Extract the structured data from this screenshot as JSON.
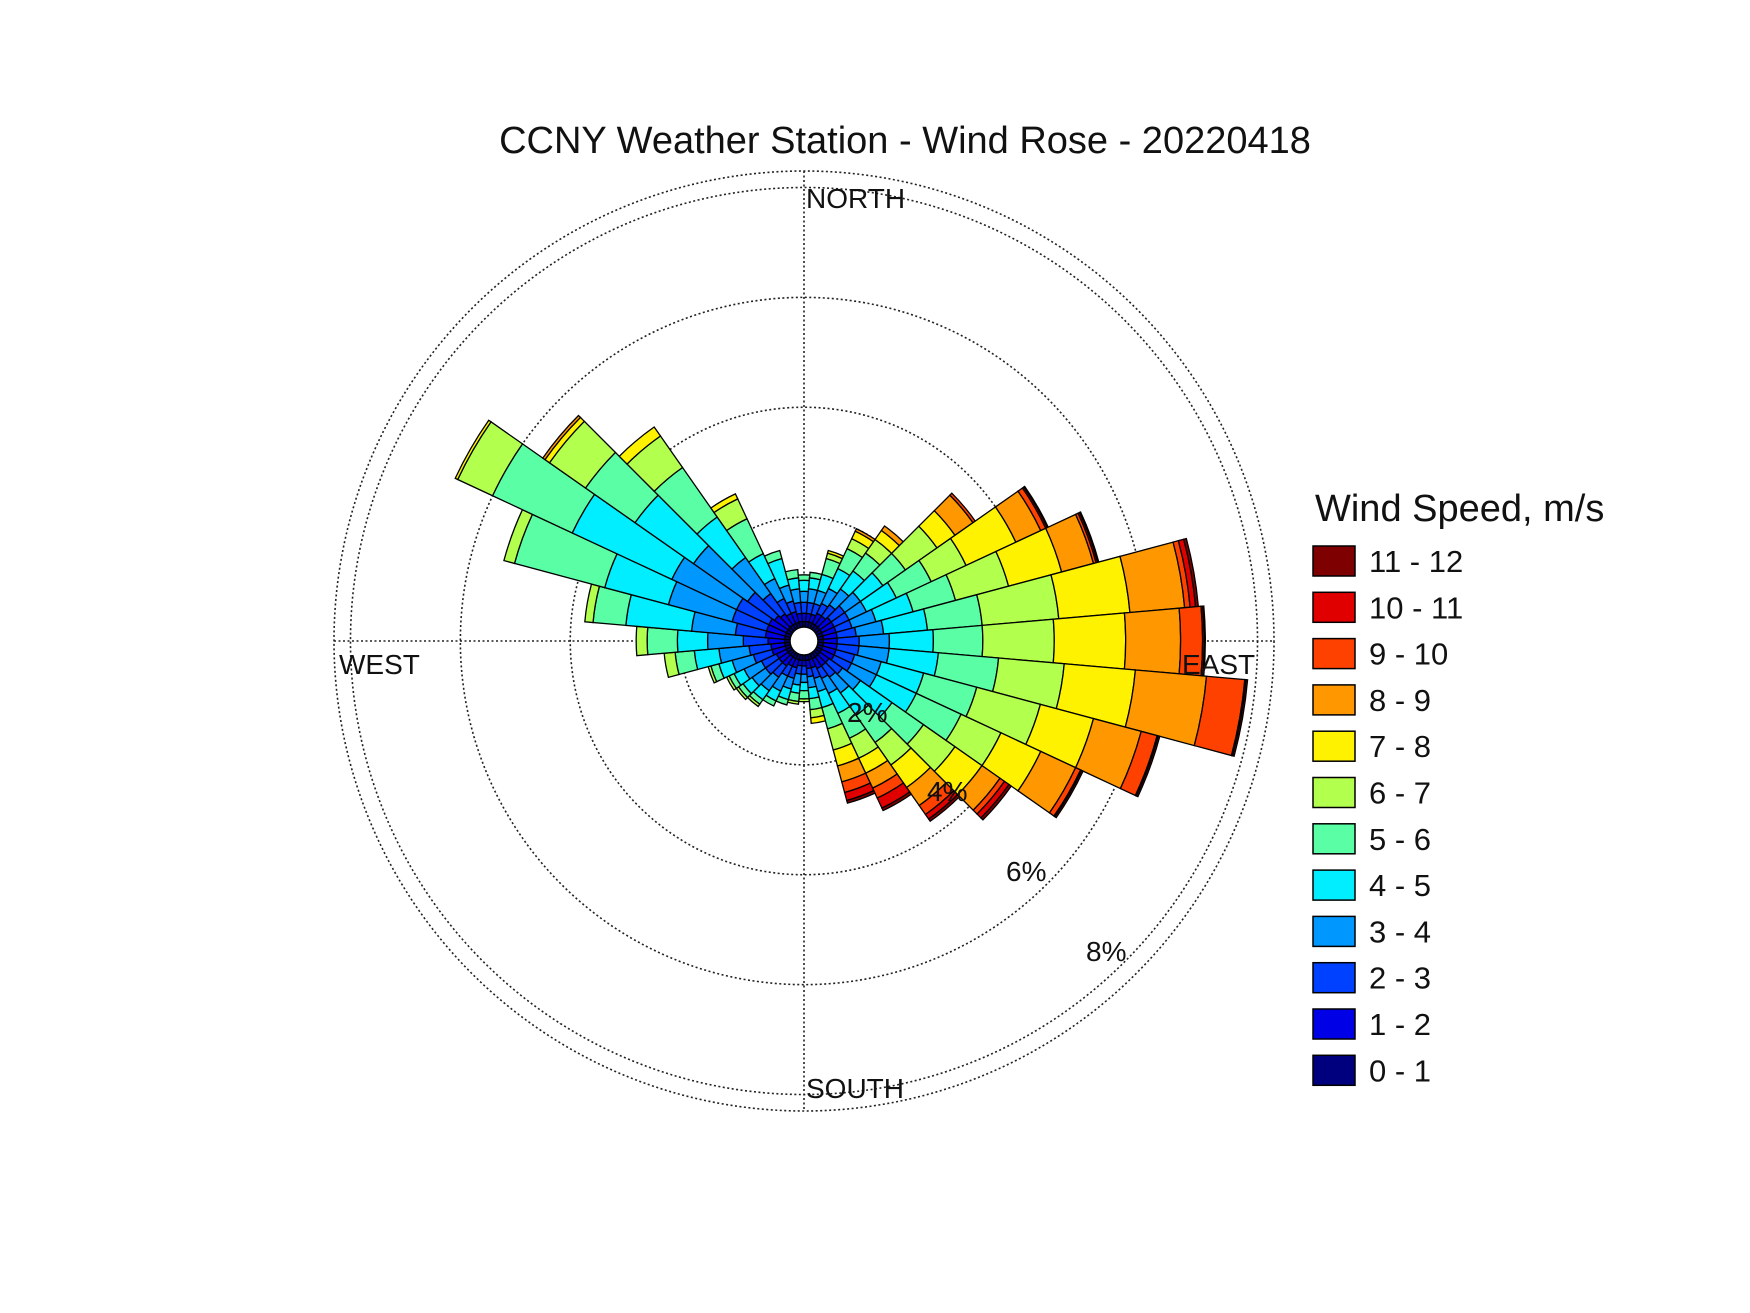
{
  "chart_data": {
    "type": "windrose",
    "title": "CCNY Weather Station - Wind Rose - 20220418",
    "directions": [
      "NORTH",
      "EAST",
      "SOUTH",
      "WEST"
    ],
    "ring_labels": [
      "2%",
      "4%",
      "6%",
      "8%"
    ],
    "rings": [
      2,
      4,
      6,
      8
    ],
    "r_max": 8.3,
    "legend_title": "Wind Speed, m/s",
    "legend_placement": "right",
    "speed_bins": [
      "0 - 1",
      "1 - 2",
      "2 - 3",
      "3 - 4",
      "4 - 5",
      "5 - 6",
      "6 - 7",
      "7 - 8",
      "8 - 9",
      "9 - 10",
      "10 - 11",
      "11 - 12"
    ],
    "bin_colors": [
      "#00007f",
      "#0000e6",
      "#0040ff",
      "#0098ff",
      "#00eeff",
      "#5affa5",
      "#b2ff4d",
      "#fff200",
      "#ff9700",
      "#ff4100",
      "#e10000",
      "#7f0000"
    ],
    "sector_width_deg": 10,
    "sectors": [
      {
        "dir": 0,
        "cum": [
          0.1,
          0.25,
          0.45,
          0.65,
          0.85,
          0.95
        ]
      },
      {
        "dir": 10,
        "cum": [
          0.1,
          0.25,
          0.45,
          0.7,
          0.9,
          1.0
        ]
      },
      {
        "dir": 20,
        "cum": [
          0.1,
          0.25,
          0.45,
          0.7,
          1.0,
          1.3,
          1.4,
          1.45
        ]
      },
      {
        "dir": 30,
        "cum": [
          0.1,
          0.3,
          0.5,
          0.8,
          1.2,
          1.6,
          1.8,
          1.95,
          2.0
        ]
      },
      {
        "dir": 40,
        "cum": [
          0.1,
          0.3,
          0.55,
          0.9,
          1.3,
          1.7,
          2.0,
          2.2,
          2.3
        ]
      },
      {
        "dir": 50,
        "cum": [
          0.1,
          0.35,
          0.65,
          1.0,
          1.5,
          2.0,
          2.7,
          3.1,
          3.5,
          3.55
        ]
      },
      {
        "dir": 60,
        "cum": [
          0.1,
          0.35,
          0.65,
          1.0,
          1.6,
          2.3,
          3.0,
          4.0,
          4.5,
          4.6,
          4.63,
          4.65
        ]
      },
      {
        "dir": 70,
        "cum": [
          0.1,
          0.35,
          0.65,
          1.1,
          1.8,
          2.6,
          3.6,
          4.6,
          5.2,
          5.25,
          5.28,
          5.3
        ]
      },
      {
        "dir": 80,
        "cum": [
          0.1,
          0.35,
          0.7,
          1.2,
          2.0,
          3.0,
          4.4,
          5.7,
          6.7,
          6.8,
          6.9,
          6.95
        ]
      },
      {
        "dir": 90,
        "cum": [
          0.1,
          0.35,
          0.75,
          1.3,
          2.1,
          3.0,
          4.3,
          5.6,
          6.6,
          7.0,
          7.03,
          7.05
        ]
      },
      {
        "dir": 100,
        "cum": [
          0.1,
          0.35,
          0.75,
          1.3,
          2.2,
          3.3,
          4.5,
          5.8,
          7.1,
          7.8,
          7.82,
          7.85
        ]
      },
      {
        "dir": 110,
        "cum": [
          0.1,
          0.35,
          0.7,
          1.2,
          2.0,
          3.0,
          4.2,
          5.2,
          6.1,
          6.4,
          6.42,
          6.45
        ]
      },
      {
        "dir": 120,
        "cum": [
          0.1,
          0.35,
          0.7,
          1.2,
          2.0,
          2.9,
          3.7,
          4.5,
          5.2,
          5.3,
          5.32,
          5.35
        ]
      },
      {
        "dir": 130,
        "cum": [
          0.1,
          0.3,
          0.6,
          1.0,
          1.7,
          2.4,
          3.1,
          3.7,
          4.1,
          4.2,
          4.3,
          4.35
        ]
      },
      {
        "dir": 140,
        "cum": [
          0.1,
          0.3,
          0.55,
          0.9,
          1.4,
          2.0,
          2.5,
          3.0,
          3.4,
          3.6,
          3.7,
          3.75
        ]
      },
      {
        "dir": 150,
        "cum": [
          0.1,
          0.3,
          0.5,
          0.8,
          1.2,
          1.7,
          2.1,
          2.4,
          2.7,
          2.9,
          3.1,
          3.15
        ]
      },
      {
        "dir": 160,
        "cum": [
          0.1,
          0.25,
          0.45,
          0.7,
          1.0,
          1.4,
          1.8,
          2.1,
          2.4,
          2.6,
          2.75,
          2.8
        ]
      },
      {
        "dir": 170,
        "cum": [
          0.1,
          0.25,
          0.4,
          0.6,
          0.8,
          1.0,
          1.15,
          1.25
        ]
      },
      {
        "dir": 180,
        "cum": [
          0.1,
          0.2,
          0.35,
          0.5,
          0.65,
          0.8,
          0.85
        ]
      },
      {
        "dir": 190,
        "cum": [
          0.1,
          0.2,
          0.35,
          0.55,
          0.7,
          0.85,
          0.9
        ]
      },
      {
        "dir": 200,
        "cum": [
          0.1,
          0.25,
          0.45,
          0.65,
          0.85,
          0.95
        ]
      },
      {
        "dir": 210,
        "cum": [
          0.1,
          0.25,
          0.45,
          0.75,
          0.95,
          1.05
        ]
      },
      {
        "dir": 220,
        "cum": [
          0.1,
          0.3,
          0.55,
          0.85,
          1.05,
          1.15,
          1.2
        ]
      },
      {
        "dir": 230,
        "cum": [
          0.1,
          0.3,
          0.6,
          0.9,
          1.1,
          1.2,
          1.25
        ]
      },
      {
        "dir": 240,
        "cum": [
          0.1,
          0.3,
          0.6,
          0.95,
          1.15,
          1.25,
          1.3
        ]
      },
      {
        "dir": 250,
        "cum": [
          0.1,
          0.35,
          0.7,
          1.1,
          1.35,
          1.5,
          1.55
        ]
      },
      {
        "dir": 260,
        "cum": [
          0.1,
          0.35,
          0.75,
          1.3,
          1.75,
          2.1,
          2.3
        ]
      },
      {
        "dir": 270,
        "cum": [
          0.1,
          0.4,
          0.85,
          1.5,
          2.05,
          2.6,
          2.8
        ]
      },
      {
        "dir": 280,
        "cum": [
          0.1,
          0.45,
          1.0,
          1.8,
          3.0,
          3.6,
          3.75
        ]
      },
      {
        "dir": 290,
        "cum": [
          0.1,
          0.45,
          1.1,
          2.3,
          3.5,
          5.2,
          5.4
        ]
      },
      {
        "dir": 300,
        "cum": [
          0.1,
          0.45,
          1.1,
          2.4,
          4.4,
          6.0,
          6.7,
          6.75
        ]
      },
      {
        "dir": 310,
        "cum": [
          0.1,
          0.4,
          1.0,
          2.2,
          3.5,
          4.6,
          5.4,
          5.5,
          5.55
        ]
      },
      {
        "dir": 320,
        "cum": [
          0.1,
          0.35,
          0.8,
          1.6,
          2.5,
          3.6,
          4.3,
          4.5
        ]
      },
      {
        "dir": 330,
        "cum": [
          0.1,
          0.3,
          0.6,
          1.0,
          1.5,
          2.2,
          2.6,
          2.7
        ]
      },
      {
        "dir": 340,
        "cum": [
          0.1,
          0.3,
          0.5,
          0.8,
          1.3,
          1.45
        ]
      },
      {
        "dir": 350,
        "cum": [
          0.1,
          0.25,
          0.45,
          0.7,
          0.9,
          1.05
        ]
      }
    ]
  }
}
